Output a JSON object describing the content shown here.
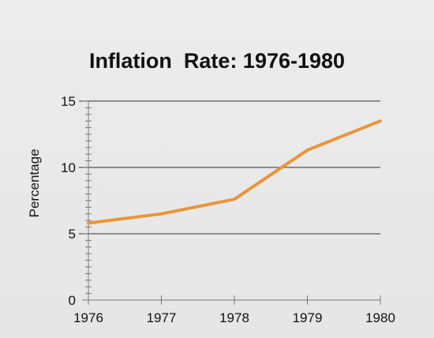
{
  "chart_data": {
    "type": "line",
    "title": "Inflation  Rate: 1976-1980",
    "xlabel": "",
    "ylabel": "Percentage",
    "x": [
      1976,
      1977,
      1978,
      1979,
      1980
    ],
    "series": [
      {
        "values": [
          5.8,
          6.5,
          7.6,
          11.3,
          13.5
        ]
      }
    ],
    "xticks": [
      "1976",
      "1977",
      "1978",
      "1979",
      "1980"
    ],
    "yticks": [
      "0",
      "5",
      "10",
      "15"
    ],
    "xlim": [
      1976,
      1980
    ],
    "ylim": [
      0,
      15
    ],
    "grid": "horizontal",
    "legend": "none",
    "colors": {
      "line": "#e8963a",
      "grid": "#555555",
      "axis": "#777777"
    }
  }
}
